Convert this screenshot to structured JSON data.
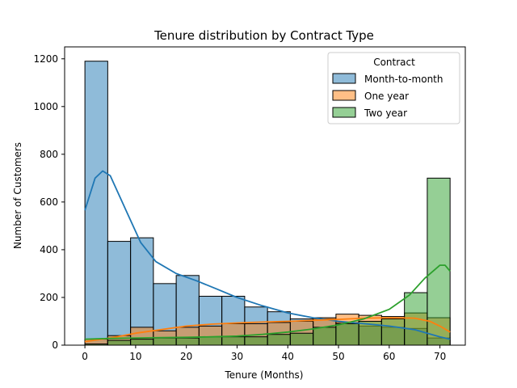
{
  "chart_data": {
    "type": "histogram",
    "title": "Tenure distribution by Contract Type",
    "xlabel": "Tenure (Months)",
    "ylabel": "Number of Customers",
    "xlim": [
      -4,
      75
    ],
    "ylim": [
      0,
      1250
    ],
    "x_ticks": [
      0,
      10,
      20,
      30,
      40,
      50,
      60,
      70
    ],
    "y_ticks": [
      0,
      200,
      400,
      600,
      800,
      1000,
      1200
    ],
    "bin_edges": [
      0,
      4.5,
      9,
      13.5,
      18,
      22.5,
      27,
      31.5,
      36,
      40.5,
      45,
      49.5,
      54,
      58.5,
      63,
      67.5,
      72
    ],
    "legend": {
      "title": "Contract",
      "position": "top-right"
    },
    "grid": false,
    "series": [
      {
        "name": "Month-to-month",
        "color": "#1f77b4",
        "counts": [
          1190,
          435,
          450,
          258,
          292,
          205,
          205,
          160,
          140,
          110,
          110,
          95,
          80,
          75,
          70,
          30
        ],
        "kde": [
          [
            0,
            565
          ],
          [
            2,
            700
          ],
          [
            3.5,
            730
          ],
          [
            5,
            710
          ],
          [
            8,
            570
          ],
          [
            11,
            430
          ],
          [
            14,
            350
          ],
          [
            18,
            300
          ],
          [
            22,
            270
          ],
          [
            26,
            235
          ],
          [
            30,
            200
          ],
          [
            35,
            165
          ],
          [
            40,
            135
          ],
          [
            45,
            115
          ],
          [
            50,
            100
          ],
          [
            55,
            90
          ],
          [
            60,
            80
          ],
          [
            65,
            65
          ],
          [
            70,
            35
          ],
          [
            72,
            25
          ]
        ]
      },
      {
        "name": "One year",
        "color": "#ff7f0e",
        "counts": [
          25,
          40,
          75,
          60,
          75,
          80,
          90,
          90,
          95,
          100,
          115,
          130,
          125,
          120,
          135,
          115
        ],
        "kde": [
          [
            0,
            15
          ],
          [
            5,
            30
          ],
          [
            10,
            50
          ],
          [
            15,
            65
          ],
          [
            20,
            80
          ],
          [
            25,
            88
          ],
          [
            30,
            93
          ],
          [
            35,
            97
          ],
          [
            40,
            100
          ],
          [
            45,
            104
          ],
          [
            50,
            108
          ],
          [
            55,
            113
          ],
          [
            60,
            115
          ],
          [
            65,
            113
          ],
          [
            68,
            100
          ],
          [
            70,
            80
          ],
          [
            72,
            55
          ]
        ]
      },
      {
        "name": "Two year",
        "color": "#2ca02c",
        "counts": [
          5,
          20,
          25,
          30,
          30,
          35,
          35,
          35,
          45,
          50,
          75,
          90,
          100,
          110,
          220,
          700
        ],
        "kde": [
          [
            0,
            25
          ],
          [
            5,
            28
          ],
          [
            10,
            30
          ],
          [
            15,
            32
          ],
          [
            20,
            33
          ],
          [
            25,
            35
          ],
          [
            30,
            38
          ],
          [
            35,
            45
          ],
          [
            40,
            55
          ],
          [
            45,
            68
          ],
          [
            50,
            85
          ],
          [
            55,
            110
          ],
          [
            60,
            150
          ],
          [
            64,
            210
          ],
          [
            67,
            280
          ],
          [
            70,
            335
          ],
          [
            71,
            335
          ],
          [
            72,
            310
          ]
        ]
      }
    ]
  }
}
